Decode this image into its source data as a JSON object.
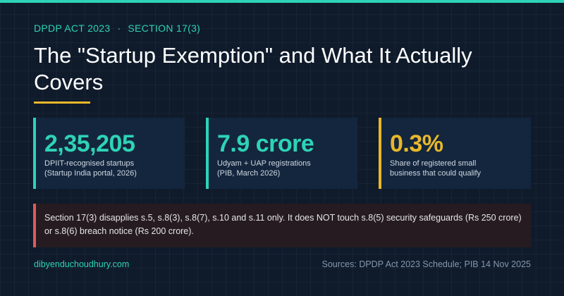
{
  "header": {
    "kicker_left": "DPDP ACT 2023",
    "kicker_separator": "·",
    "kicker_right": "SECTION 17(3)",
    "title": "The \"Startup Exemption\" and What It Actually Covers"
  },
  "stats": [
    {
      "value": "2,35,205",
      "label": "DPIIT-recognised startups (Startup India portal, 2026)",
      "accent": "#2ed3b7"
    },
    {
      "value": "7.9 crore",
      "label": "Udyam + UAP registrations (PIB, March 2026)",
      "accent": "#2ed3b7"
    },
    {
      "value": "0.3%",
      "label": "Share of registered small business that could qualify",
      "accent": "#e8b82a"
    }
  ],
  "callout": {
    "text": "Section 17(3) disapplies s.5, s.8(3), s.8(7), s.10 and s.11 only. It does NOT touch s.8(5) security safeguards (Rs 250 crore) or s.8(6) breach notice (Rs 200 crore).",
    "accent": "#e05a5a"
  },
  "footer": {
    "site": "dibyenduchoudhury.com",
    "sources": "Sources: DPDP Act 2023 Schedule; PIB 14 Nov 2025"
  },
  "colors": {
    "background": "#0f1b2b",
    "teal": "#2ed3b7",
    "amber": "#e8b82a",
    "red": "#e05a5a"
  }
}
